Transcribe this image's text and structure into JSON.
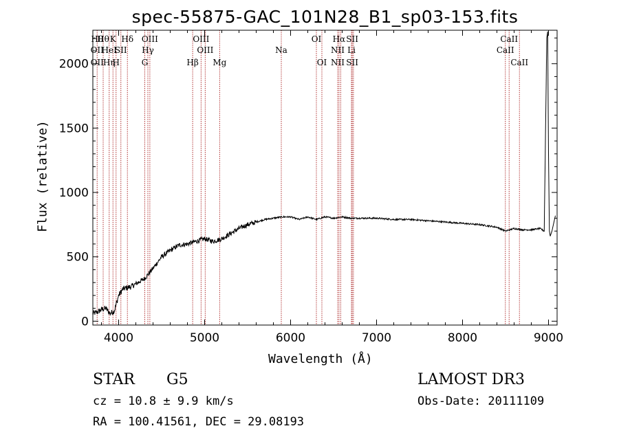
{
  "chart_data": {
    "type": "line",
    "title": "spec-55875-GAC_101N28_B1_sp03-153.fits",
    "xlabel": "Wavelength (Å)",
    "ylabel": "Flux (relative)",
    "xlim": [
      3700,
      9100
    ],
    "ylim": [
      -30,
      2260
    ],
    "xticks": [
      4000,
      5000,
      6000,
      7000,
      8000,
      9000
    ],
    "yticks": [
      0,
      500,
      1000,
      1500,
      2000
    ],
    "line_color": "#000000",
    "marker_color": "#b03030",
    "series": [
      {
        "name": "flux",
        "x": [
          3700,
          3750,
          3800,
          3850,
          3900,
          3950,
          4000,
          4050,
          4100,
          4150,
          4200,
          4250,
          4300,
          4350,
          4400,
          4500,
          4600,
          4700,
          4800,
          4900,
          5000,
          5100,
          5200,
          5300,
          5400,
          5500,
          5600,
          5700,
          5800,
          5900,
          6000,
          6100,
          6200,
          6300,
          6400,
          6500,
          6600,
          6700,
          6800,
          6900,
          7000,
          7200,
          7400,
          7600,
          7800,
          8000,
          8200,
          8400,
          8500,
          8600,
          8700,
          8800,
          8900,
          8950,
          8980,
          8990,
          9000,
          9010,
          9020,
          9040,
          9060,
          9080
        ],
        "y": [
          60,
          70,
          90,
          100,
          60,
          80,
          200,
          250,
          260,
          270,
          290,
          310,
          330,
          370,
          410,
          500,
          550,
          590,
          600,
          620,
          640,
          620,
          640,
          680,
          720,
          750,
          770,
          790,
          800,
          810,
          810,
          790,
          810,
          790,
          810,
          800,
          810,
          800,
          800,
          800,
          800,
          790,
          790,
          780,
          770,
          760,
          750,
          730,
          700,
          720,
          710,
          710,
          720,
          700,
          2200,
          2250,
          1300,
          700,
          660,
          700,
          760,
          820
        ]
      }
    ],
    "lines": [
      {
        "wavelength": 3750,
        "row1": "Hθ",
        "row2": "OII",
        "row3": "OII"
      },
      {
        "wavelength": 3820,
        "row1": "Hθ",
        "row2": "",
        "row3": ""
      },
      {
        "wavelength": 3890,
        "row1": "",
        "row2": "HeI",
        "row3": "Hη"
      },
      {
        "wavelength": 3934,
        "row1": "K",
        "row2": "",
        "row3": ""
      },
      {
        "wavelength": 3970,
        "row1": "",
        "row2": "",
        "row3": "H"
      },
      {
        "wavelength": 4026,
        "row1": "",
        "row2": "SII",
        "row3": ""
      },
      {
        "wavelength": 4102,
        "row1": "Hδ",
        "row2": "",
        "row3": ""
      },
      {
        "wavelength": 4304,
        "row1": "",
        "row2": "",
        "row3": "G"
      },
      {
        "wavelength": 4340,
        "row1": "",
        "row2": "Hγ",
        "row3": ""
      },
      {
        "wavelength": 4363,
        "row1": "OIII",
        "row2": "",
        "row3": ""
      },
      {
        "wavelength": 4861,
        "row1": "",
        "row2": "",
        "row3": "Hβ"
      },
      {
        "wavelength": 4959,
        "row1": "OIII",
        "row2": "",
        "row3": ""
      },
      {
        "wavelength": 5007,
        "row1": "",
        "row2": "OIII",
        "row3": ""
      },
      {
        "wavelength": 5175,
        "row1": "",
        "row2": "",
        "row3": "Mg"
      },
      {
        "wavelength": 5892,
        "row1": "",
        "row2": "Na",
        "row3": ""
      },
      {
        "wavelength": 6300,
        "row1": "OI",
        "row2": "",
        "row3": ""
      },
      {
        "wavelength": 6364,
        "row1": "",
        "row2": "",
        "row3": "OI"
      },
      {
        "wavelength": 6548,
        "row1": "",
        "row2": "NII",
        "row3": "NII"
      },
      {
        "wavelength": 6563,
        "row1": "Hα",
        "row2": "",
        "row3": ""
      },
      {
        "wavelength": 6583,
        "row1": "",
        "row2": "",
        "row3": ""
      },
      {
        "wavelength": 6708,
        "row1": "",
        "row2": "Li",
        "row3": ""
      },
      {
        "wavelength": 6717,
        "row1": "SII",
        "row2": "",
        "row3": "SII"
      },
      {
        "wavelength": 6731,
        "row1": "",
        "row2": "",
        "row3": ""
      },
      {
        "wavelength": 8498,
        "row1": "",
        "row2": "CaII",
        "row3": ""
      },
      {
        "wavelength": 8542,
        "row1": "CaII",
        "row2": "",
        "row3": ""
      },
      {
        "wavelength": 8662,
        "row1": "",
        "row2": "",
        "row3": "CaII"
      }
    ]
  },
  "info": {
    "class": "STAR",
    "subclass": "G5",
    "survey": "LAMOST DR3",
    "cz": "cz = 10.8 ± 9.9 km/s",
    "obs_date": "Obs-Date: 20111109",
    "coords": "RA = 100.41561, DEC =  29.08193"
  }
}
